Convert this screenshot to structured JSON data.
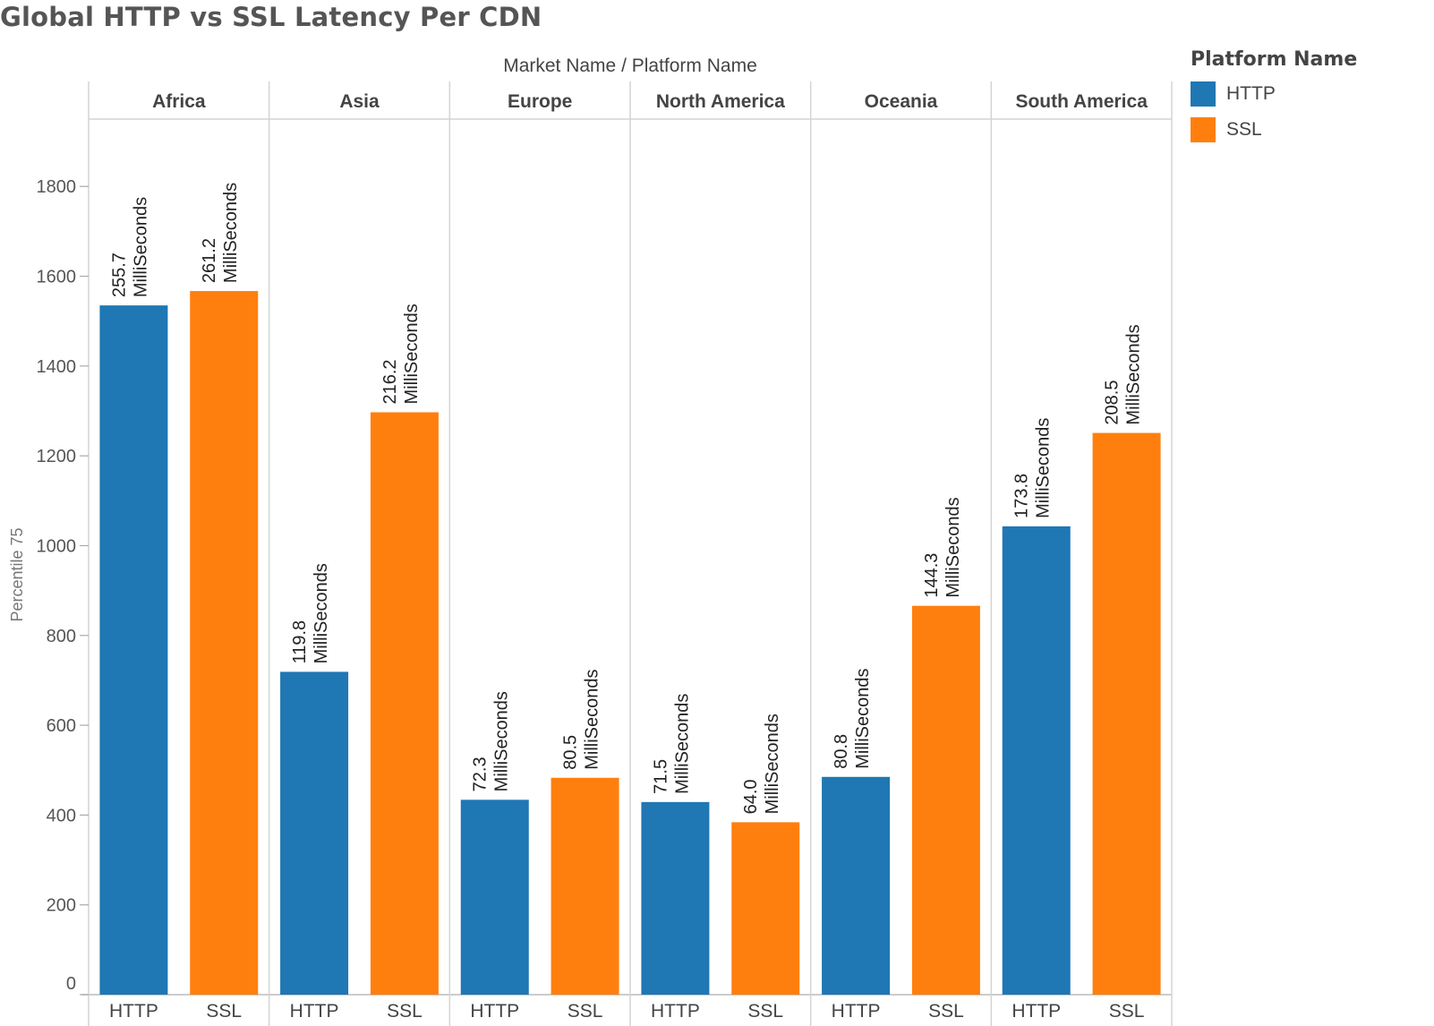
{
  "chart_data": {
    "type": "bar",
    "title": "Global HTTP vs SSL Latency Per CDN",
    "column_header": {
      "first": "Market Name",
      "separator": "/",
      "second": "Platform Name"
    },
    "ylabel": "Percentile 75",
    "ylim": [
      0,
      1950
    ],
    "yticks": [
      0,
      200,
      400,
      600,
      800,
      1000,
      1200,
      1400,
      1600,
      1800
    ],
    "grid": false,
    "legend_position": "top-right",
    "legend": {
      "title": "Platform Name",
      "items": [
        {
          "name": "HTTP",
          "color": "#1f77b4"
        },
        {
          "name": "SSL",
          "color": "#ff7f0e"
        }
      ]
    },
    "unit_label": "MilliSeconds",
    "groups": [
      {
        "name": "Africa",
        "bars": [
          {
            "category": "HTTP",
            "value": 1535,
            "label": "255.7"
          },
          {
            "category": "SSL",
            "value": 1567,
            "label": "261.2"
          }
        ]
      },
      {
        "name": "Asia",
        "bars": [
          {
            "category": "HTTP",
            "value": 719,
            "label": "119.8"
          },
          {
            "category": "SSL",
            "value": 1297,
            "label": "216.2"
          }
        ]
      },
      {
        "name": "Europe",
        "bars": [
          {
            "category": "HTTP",
            "value": 434,
            "label": "72.3"
          },
          {
            "category": "SSL",
            "value": 483,
            "label": "80.5"
          }
        ]
      },
      {
        "name": "North America",
        "bars": [
          {
            "category": "HTTP",
            "value": 429,
            "label": "71.5"
          },
          {
            "category": "SSL",
            "value": 384,
            "label": "64.0"
          }
        ]
      },
      {
        "name": "Oceania",
        "bars": [
          {
            "category": "HTTP",
            "value": 485,
            "label": "80.8"
          },
          {
            "category": "SSL",
            "value": 866,
            "label": "144.3"
          }
        ]
      },
      {
        "name": "South America",
        "bars": [
          {
            "category": "HTTP",
            "value": 1043,
            "label": "173.8"
          },
          {
            "category": "SSL",
            "value": 1251,
            "label": "208.5"
          }
        ]
      }
    ]
  }
}
